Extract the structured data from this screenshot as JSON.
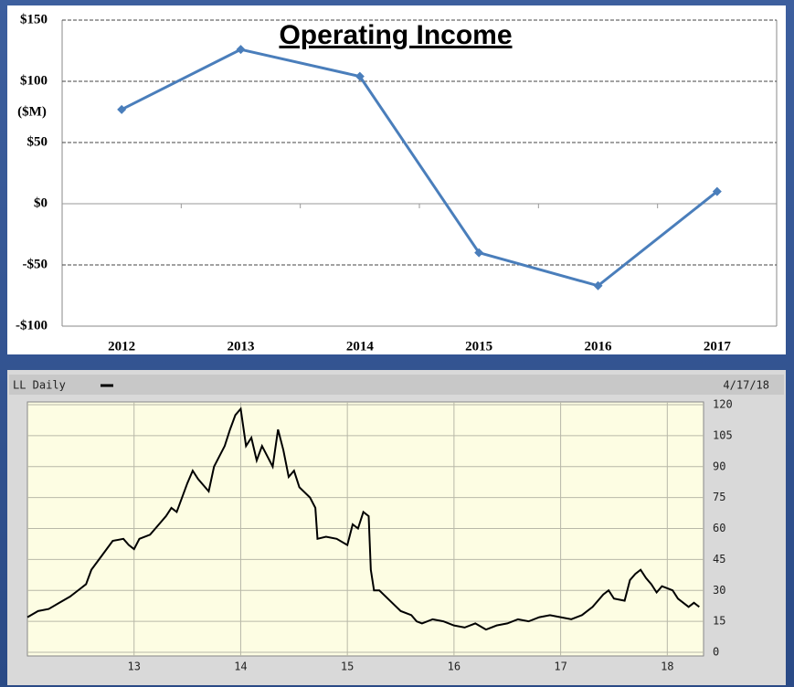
{
  "chart_data": [
    {
      "type": "line",
      "title": "Operating Income",
      "y_label": "($M)",
      "categories": [
        "2012",
        "2013",
        "2014",
        "2015",
        "2016",
        "2017"
      ],
      "values": [
        77,
        126,
        104,
        -40,
        -67,
        10
      ],
      "color": "#4a7ebb",
      "ylim": [
        -100,
        150
      ],
      "yticks": [
        {
          "value": -100,
          "label": "-$100"
        },
        {
          "value": -50,
          "label": "-$50"
        },
        {
          "value": 0,
          "label": "$0"
        },
        {
          "value": 50,
          "label": "$50"
        },
        {
          "value": 100,
          "label": "$100"
        },
        {
          "value": 150,
          "label": "$150"
        }
      ],
      "grid": true
    },
    {
      "type": "line",
      "date_label": "4/17/18",
      "series": [
        {
          "name": "LL Daily",
          "color": "#000000",
          "x": [
            12.0,
            12.1,
            12.2,
            12.3,
            12.4,
            12.5,
            12.55,
            12.6,
            12.7,
            12.8,
            12.9,
            12.95,
            13.0,
            13.05,
            13.15,
            13.2,
            13.3,
            13.35,
            13.4,
            13.5,
            13.55,
            13.6,
            13.7,
            13.75,
            13.85,
            13.9,
            13.95,
            14.0,
            14.05,
            14.1,
            14.15,
            14.2,
            14.3,
            14.35,
            14.4,
            14.45,
            14.5,
            14.55,
            14.65,
            14.7,
            14.72,
            14.8,
            14.9,
            15.0,
            15.05,
            15.1,
            15.15,
            15.2,
            15.22,
            15.25,
            15.3,
            15.4,
            15.5,
            15.6,
            15.65,
            15.7,
            15.8,
            15.9,
            16.0,
            16.1,
            16.2,
            16.3,
            16.4,
            16.5,
            16.6,
            16.7,
            16.8,
            16.9,
            17.0,
            17.1,
            17.2,
            17.3,
            17.4,
            17.45,
            17.5,
            17.6,
            17.65,
            17.7,
            17.75,
            17.8,
            17.85,
            17.9,
            17.95,
            18.0,
            18.05,
            18.1,
            18.2,
            18.25,
            18.3
          ],
          "values": [
            17,
            20,
            21,
            24,
            27,
            31,
            33,
            40,
            47,
            54,
            55,
            52,
            50,
            55,
            57,
            60,
            66,
            70,
            68,
            82,
            88,
            84,
            78,
            90,
            100,
            108,
            115,
            118,
            100,
            104,
            93,
            100,
            90,
            108,
            98,
            85,
            88,
            80,
            75,
            70,
            55,
            56,
            55,
            52,
            62,
            60,
            68,
            66,
            40,
            30,
            30,
            25,
            20,
            18,
            15,
            14,
            16,
            15,
            13,
            12,
            14,
            11,
            13,
            14,
            16,
            15,
            17,
            18,
            17,
            16,
            18,
            22,
            28,
            30,
            26,
            25,
            35,
            38,
            40,
            36,
            33,
            29,
            32,
            31,
            30,
            26,
            22,
            24,
            22
          ]
        }
      ],
      "xlim": [
        12,
        18.34
      ],
      "xticks": [
        13,
        14,
        15,
        16,
        17,
        18
      ],
      "ylim": [
        0,
        120
      ],
      "yticks": [
        0,
        15,
        30,
        45,
        60,
        75,
        90,
        105,
        120
      ],
      "grid": true
    }
  ]
}
